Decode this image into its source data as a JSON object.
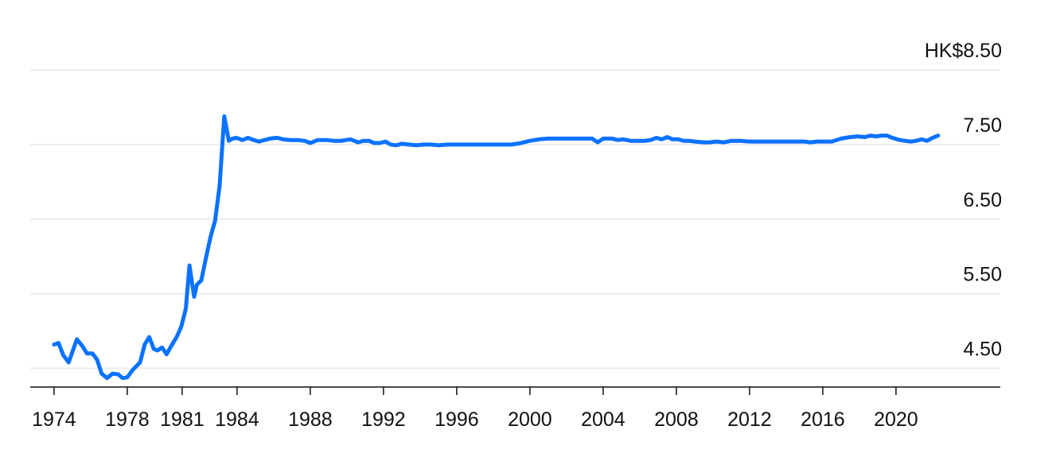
{
  "chart_data": {
    "type": "line",
    "title": "",
    "xlabel": "",
    "ylabel": "",
    "y_unit_label": "HK$8.50",
    "ylim": [
      4.25,
      8.5
    ],
    "xlim": [
      1972.7,
      2025.7
    ],
    "y_ticks": [
      {
        "value": 8.5,
        "label": "HK$8.50"
      },
      {
        "value": 7.5,
        "label": "7.50"
      },
      {
        "value": 6.5,
        "label": "6.50"
      },
      {
        "value": 5.5,
        "label": "5.50"
      },
      {
        "value": 4.5,
        "label": "4.50"
      }
    ],
    "x_ticks": [
      {
        "value": 1974,
        "label": "1974"
      },
      {
        "value": 1978,
        "label": "1978"
      },
      {
        "value": 1981,
        "label": "1981"
      },
      {
        "value": 1984,
        "label": "1984"
      },
      {
        "value": 1988,
        "label": "1988"
      },
      {
        "value": 1992,
        "label": "1992"
      },
      {
        "value": 1996,
        "label": "1996"
      },
      {
        "value": 2000,
        "label": "2000"
      },
      {
        "value": 2004,
        "label": "2004"
      },
      {
        "value": 2008,
        "label": "2008"
      },
      {
        "value": 2012,
        "label": "2012"
      },
      {
        "value": 2016,
        "label": "2016"
      },
      {
        "value": 2020,
        "label": "2020"
      }
    ],
    "grid": true,
    "series": [
      {
        "color": "#0a72ff",
        "x": [
          1974.0,
          1974.25,
          1974.5,
          1974.8,
          1975.0,
          1975.25,
          1975.55,
          1975.8,
          1976.1,
          1976.35,
          1976.6,
          1976.9,
          1977.2,
          1977.5,
          1977.75,
          1978.0,
          1978.3,
          1978.7,
          1978.95,
          1979.2,
          1979.45,
          1979.65,
          1979.9,
          1980.15,
          1980.4,
          1980.7,
          1980.95,
          1981.2,
          1981.4,
          1981.65,
          1981.8,
          1982.05,
          1982.3,
          1982.55,
          1982.8,
          1983.05,
          1983.3,
          1983.55,
          1983.75,
          1983.95,
          1984.3,
          1984.6,
          1984.9,
          1985.2,
          1985.5,
          1985.8,
          1986.2,
          1986.5,
          1986.9,
          1987.3,
          1987.7,
          1988.0,
          1988.4,
          1988.9,
          1989.3,
          1989.7,
          1990.2,
          1990.6,
          1990.9,
          1991.2,
          1991.5,
          1991.8,
          1992.1,
          1992.4,
          1992.7,
          1993.0,
          1993.4,
          1993.8,
          1994.2,
          1994.6,
          1995.0,
          1995.5,
          1996.0,
          1997.0,
          1998.0,
          1999.0,
          1999.5,
          2000.0,
          2000.5,
          2001.0,
          2002.0,
          2003.0,
          2003.4,
          2003.7,
          2004.0,
          2004.5,
          2004.8,
          2005.1,
          2005.5,
          2005.9,
          2006.3,
          2006.6,
          2006.9,
          2007.2,
          2007.5,
          2007.8,
          2008.1,
          2008.4,
          2008.7,
          2009.0,
          2009.5,
          2009.8,
          2010.2,
          2010.6,
          2011.0,
          2011.5,
          2012.0,
          2013.0,
          2014.0,
          2015.0,
          2015.3,
          2015.7,
          2016.0,
          2016.5,
          2017.0,
          2017.5,
          2017.9,
          2018.3,
          2018.6,
          2018.9,
          2019.2,
          2019.5,
          2019.8,
          2020.2,
          2020.5,
          2020.8,
          2021.1,
          2021.4,
          2021.7,
          2022.0,
          2022.3
        ],
        "values": [
          4.82,
          4.84,
          4.68,
          4.58,
          4.72,
          4.89,
          4.8,
          4.7,
          4.7,
          4.62,
          4.43,
          4.37,
          4.43,
          4.42,
          4.37,
          4.38,
          4.48,
          4.58,
          4.82,
          4.92,
          4.76,
          4.74,
          4.78,
          4.69,
          4.8,
          4.92,
          5.06,
          5.3,
          5.88,
          5.46,
          5.62,
          5.68,
          5.98,
          6.26,
          6.48,
          6.95,
          7.88,
          7.55,
          7.58,
          7.59,
          7.56,
          7.59,
          7.56,
          7.54,
          7.56,
          7.58,
          7.59,
          7.57,
          7.56,
          7.56,
          7.55,
          7.52,
          7.56,
          7.56,
          7.55,
          7.55,
          7.57,
          7.53,
          7.55,
          7.55,
          7.52,
          7.52,
          7.54,
          7.5,
          7.49,
          7.51,
          7.5,
          7.49,
          7.5,
          7.5,
          7.49,
          7.5,
          7.5,
          7.5,
          7.5,
          7.5,
          7.52,
          7.55,
          7.57,
          7.58,
          7.58,
          7.58,
          7.58,
          7.53,
          7.58,
          7.58,
          7.56,
          7.57,
          7.55,
          7.55,
          7.55,
          7.56,
          7.59,
          7.57,
          7.6,
          7.57,
          7.57,
          7.55,
          7.55,
          7.54,
          7.53,
          7.53,
          7.54,
          7.53,
          7.55,
          7.55,
          7.54,
          7.54,
          7.54,
          7.54,
          7.53,
          7.54,
          7.54,
          7.54,
          7.58,
          7.6,
          7.61,
          7.6,
          7.62,
          7.61,
          7.62,
          7.62,
          7.59,
          7.56,
          7.55,
          7.54,
          7.55,
          7.57,
          7.55,
          7.59,
          7.62
        ]
      }
    ]
  }
}
